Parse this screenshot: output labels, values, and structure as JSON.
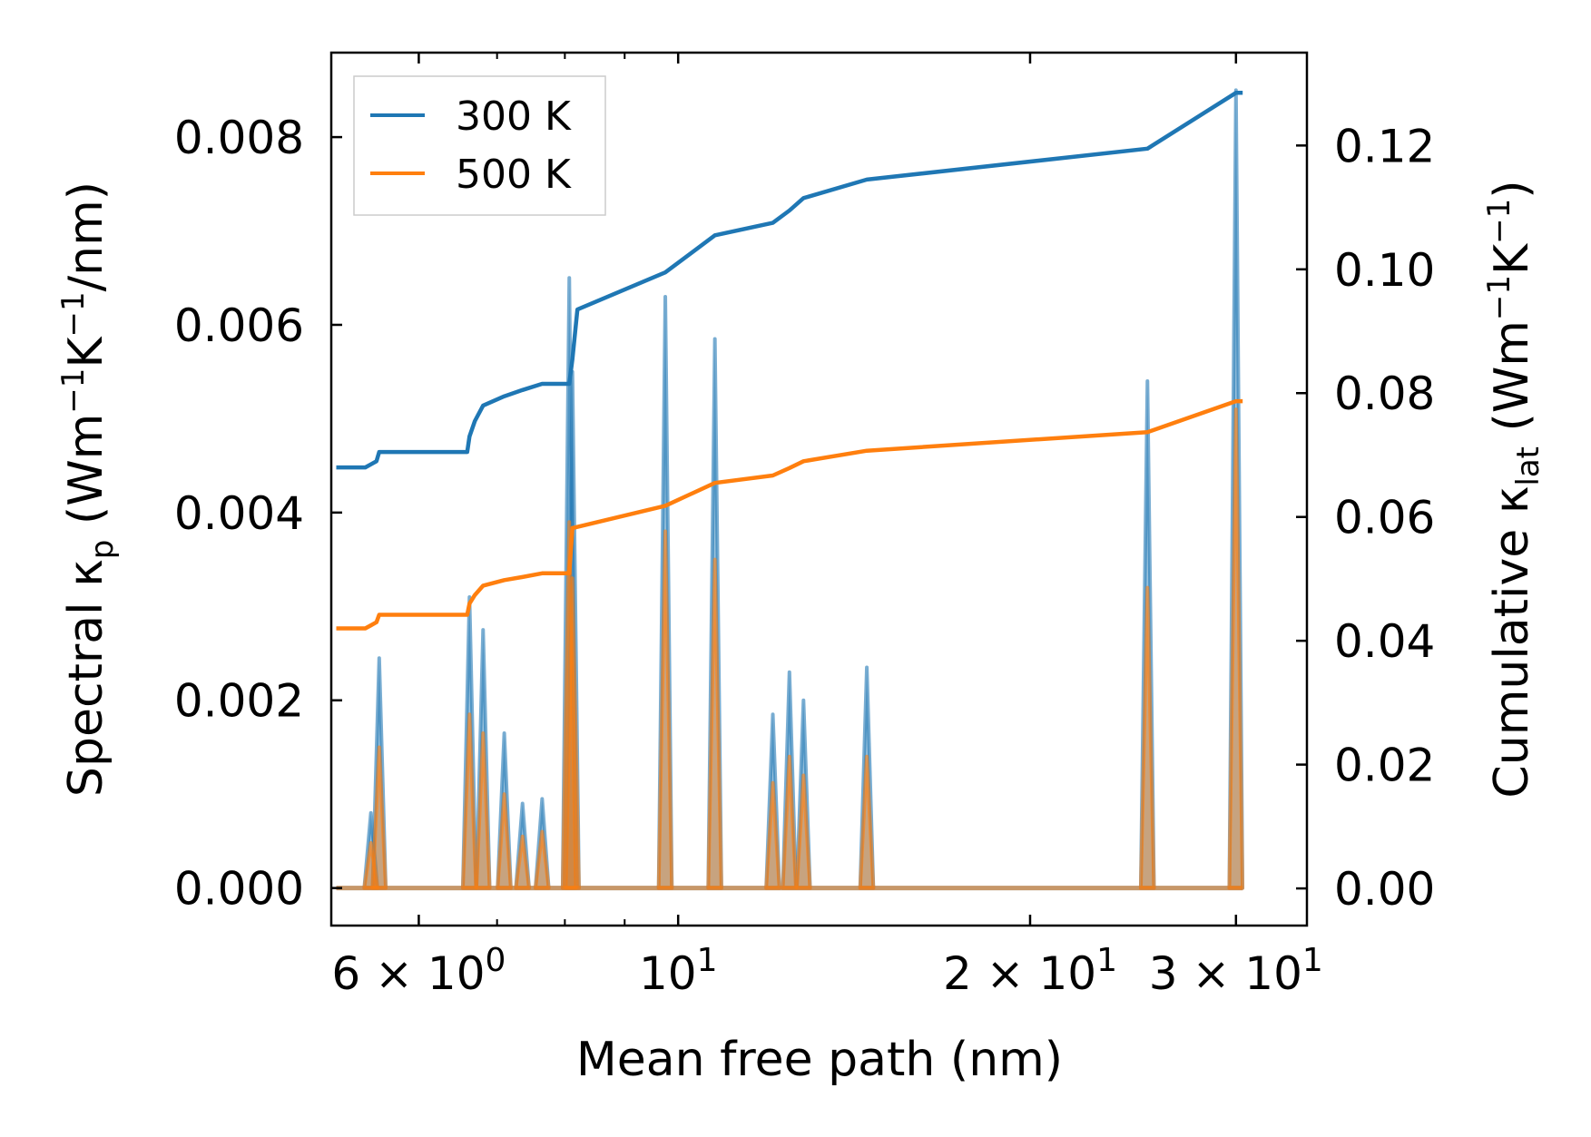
{
  "chart_data": {
    "type": "line",
    "xscale": "log",
    "xlabel": "Mean free path (nm)",
    "ylabel_left": {
      "main": "Spectral κ",
      "sub": "p",
      "unit_pre": " (Wm",
      "sup1": "−1",
      "mid": "K",
      "sup2": "−1",
      "unit_post": "/nm)"
    },
    "ylabel_right": {
      "main": "Cumulative κ",
      "sub": "lat",
      "unit_pre": " (Wm",
      "sup1": "−1",
      "mid": "K",
      "sup2": "−1",
      "unit_post": ")"
    },
    "xlim": [
      5.05,
      34.5
    ],
    "ylim_left": [
      -0.0004,
      0.0089
    ],
    "ylim_right": [
      -0.006,
      0.135
    ],
    "x_ticks": [
      {
        "value": 6,
        "mant": "6",
        "times": " × ",
        "base": "10",
        "exp": "0"
      },
      {
        "value": 10,
        "mant": "",
        "times": "",
        "base": "10",
        "exp": "1"
      },
      {
        "value": 20,
        "mant": "2",
        "times": " × ",
        "base": "10",
        "exp": "1"
      },
      {
        "value": 30,
        "mant": "3",
        "times": " × ",
        "base": "10",
        "exp": "1"
      }
    ],
    "x_minor_ticks": [
      7,
      8,
      9
    ],
    "y_ticks_left": [
      {
        "value": 0.0,
        "label": "0.000"
      },
      {
        "value": 0.002,
        "label": "0.002"
      },
      {
        "value": 0.004,
        "label": "0.004"
      },
      {
        "value": 0.006,
        "label": "0.006"
      },
      {
        "value": 0.008,
        "label": "0.008"
      }
    ],
    "y_ticks_right": [
      {
        "value": 0.0,
        "label": "0.00"
      },
      {
        "value": 0.02,
        "label": "0.02"
      },
      {
        "value": 0.04,
        "label": "0.04"
      },
      {
        "value": 0.06,
        "label": "0.06"
      },
      {
        "value": 0.08,
        "label": "0.08"
      },
      {
        "value": 0.1,
        "label": "0.10"
      },
      {
        "value": 0.12,
        "label": "0.12"
      }
    ],
    "legend": {
      "position": "upper-left",
      "entries": [
        {
          "name": "300 K",
          "color": "#1f77b4"
        },
        {
          "name": "500 K",
          "color": "#ff7f0e"
        }
      ]
    },
    "peak_halfwidth_nm": 0.013,
    "series": [
      {
        "name": "300 K",
        "color": "#1f77b4",
        "spectral_peaks": [
          {
            "x": 5.46,
            "y": 0.0008
          },
          {
            "x": 5.55,
            "y": 0.00245
          },
          {
            "x": 6.63,
            "y": 0.0031
          },
          {
            "x": 6.81,
            "y": 0.00275
          },
          {
            "x": 7.1,
            "y": 0.00165
          },
          {
            "x": 7.36,
            "y": 0.0009
          },
          {
            "x": 7.65,
            "y": 0.00095
          },
          {
            "x": 8.07,
            "y": 0.0065
          },
          {
            "x": 8.12,
            "y": 0.0055
          },
          {
            "x": 9.75,
            "y": 0.0063
          },
          {
            "x": 10.75,
            "y": 0.00585
          },
          {
            "x": 12.05,
            "y": 0.00185
          },
          {
            "x": 12.45,
            "y": 0.0023
          },
          {
            "x": 12.8,
            "y": 0.002
          },
          {
            "x": 14.5,
            "y": 0.00235
          },
          {
            "x": 25.2,
            "y": 0.0054
          },
          {
            "x": 30.0,
            "y": 0.0085
          }
        ],
        "cumulative_x": [
          5.1,
          5.4,
          5.46,
          5.52,
          5.55,
          6.6,
          6.63,
          6.7,
          6.81,
          7.1,
          7.36,
          7.65,
          8.07,
          8.12,
          8.2,
          9.75,
          10.75,
          12.05,
          12.45,
          12.8,
          14.5,
          25.2,
          30.0,
          30.4
        ],
        "cumulative_y": [
          0.068,
          0.068,
          0.0685,
          0.069,
          0.0705,
          0.0705,
          0.073,
          0.0755,
          0.078,
          0.0795,
          0.0805,
          0.0815,
          0.0815,
          0.0855,
          0.0935,
          0.0995,
          0.1055,
          0.1075,
          0.1095,
          0.1115,
          0.1145,
          0.1195,
          0.1285,
          0.1285
        ]
      },
      {
        "name": "500 K",
        "color": "#ff7f0e",
        "spectral_peaks": [
          {
            "x": 5.46,
            "y": 0.00048
          },
          {
            "x": 5.55,
            "y": 0.0015
          },
          {
            "x": 6.63,
            "y": 0.00185
          },
          {
            "x": 6.81,
            "y": 0.00165
          },
          {
            "x": 7.1,
            "y": 0.001
          },
          {
            "x": 7.36,
            "y": 0.00055
          },
          {
            "x": 7.65,
            "y": 0.0006
          },
          {
            "x": 8.07,
            "y": 0.0039
          },
          {
            "x": 8.12,
            "y": 0.0033
          },
          {
            "x": 9.75,
            "y": 0.0038
          },
          {
            "x": 10.75,
            "y": 0.0035
          },
          {
            "x": 12.05,
            "y": 0.00112
          },
          {
            "x": 12.45,
            "y": 0.0014
          },
          {
            "x": 12.8,
            "y": 0.0012
          },
          {
            "x": 14.5,
            "y": 0.0014
          },
          {
            "x": 25.2,
            "y": 0.0032
          },
          {
            "x": 30.0,
            "y": 0.0051
          }
        ],
        "cumulative_x": [
          5.1,
          5.4,
          5.46,
          5.52,
          5.55,
          6.6,
          6.63,
          6.7,
          6.81,
          7.1,
          7.36,
          7.65,
          8.07,
          8.12,
          9.75,
          10.75,
          12.05,
          12.45,
          12.8,
          14.5,
          25.2,
          30.0,
          30.4
        ],
        "cumulative_y": [
          0.042,
          0.042,
          0.0425,
          0.043,
          0.0442,
          0.0442,
          0.046,
          0.0474,
          0.0489,
          0.0498,
          0.0503,
          0.0509,
          0.0509,
          0.0582,
          0.0618,
          0.0655,
          0.0667,
          0.0679,
          0.069,
          0.0707,
          0.0737,
          0.0787,
          0.0787
        ]
      }
    ]
  }
}
